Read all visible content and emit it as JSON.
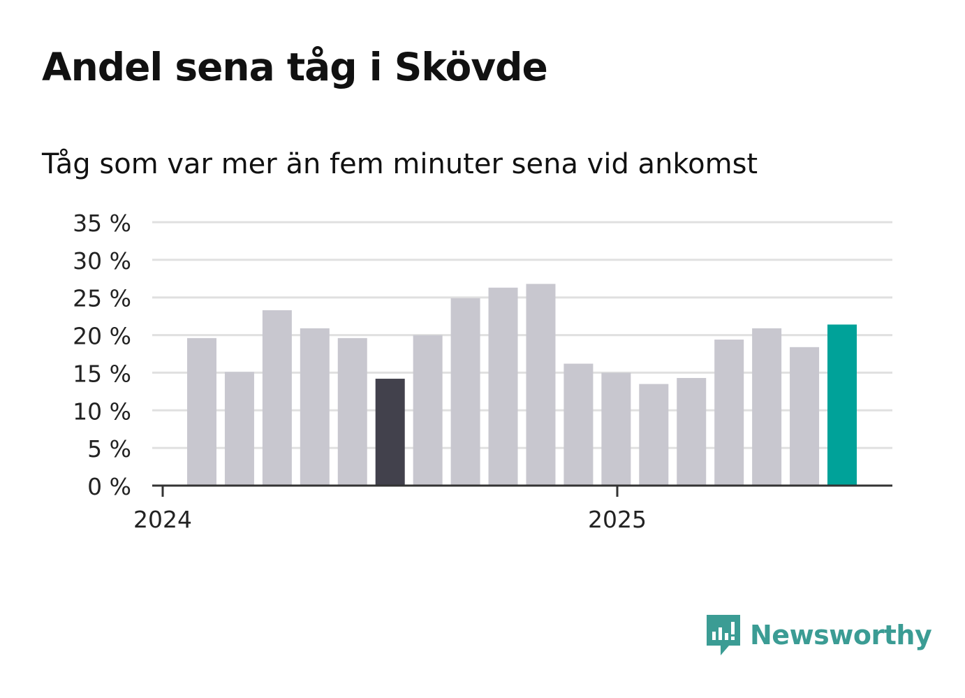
{
  "title": "Andel sena tåg i Skövde",
  "subtitle": "Tåg som var mer än fem minuter sena vid ankomst",
  "brand": {
    "name": "Newsworthy",
    "color": "#3b9c94"
  },
  "colors": {
    "default_bar": "#c8c7cf",
    "highlight_bar": "#42414c",
    "latest_bar": "#00a299",
    "grid": "#e0e0e0",
    "axis": "#333333"
  },
  "chart_data": {
    "type": "bar",
    "categories": [
      "2024-01",
      "2024-02",
      "2024-03",
      "2024-04",
      "2024-05",
      "2024-06",
      "2024-07",
      "2024-08",
      "2024-09",
      "2024-10",
      "2024-11",
      "2024-12",
      "2025-01",
      "2025-02",
      "2025-03",
      "2025-04",
      "2025-05",
      "2025-06"
    ],
    "values": [
      19.6,
      15.1,
      23.3,
      20.9,
      19.6,
      14.2,
      20.0,
      24.9,
      26.3,
      26.8,
      16.2,
      15.0,
      13.5,
      14.3,
      19.4,
      20.9,
      18.4,
      21.4
    ],
    "highlight": {
      "2024-06": "dark",
      "2025-06": "latest"
    },
    "ylim": [
      0,
      35
    ],
    "yticks": [
      0,
      5,
      10,
      15,
      20,
      25,
      30,
      35
    ],
    "ytick_labels": [
      "0 %",
      "5 %",
      "10 %",
      "15 %",
      "20 %",
      "25 %",
      "30 %",
      "35 %"
    ],
    "xtick_labels": [
      "2024",
      "2025"
    ],
    "grid": true,
    "legend": "none"
  }
}
